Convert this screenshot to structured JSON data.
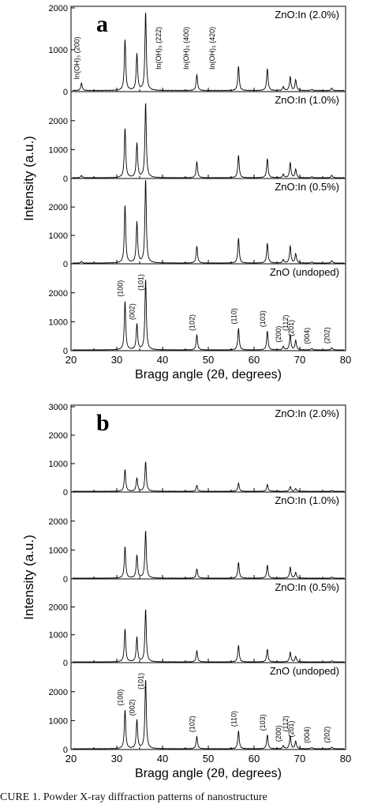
{
  "caption": "CURE 1. Powder X-ray diffraction patterns of nanostructure",
  "chart_data": [
    {
      "type": "line",
      "panel_label": "a",
      "xlabel": "Bragg angle (2θ, degrees)",
      "ylabel": "Intensity (a.u.)",
      "xlim": [
        20,
        80
      ],
      "xticks": [
        "20",
        "30",
        "40",
        "50",
        "60",
        "70",
        "80"
      ],
      "grid": false,
      "series": [
        {
          "name": "ZnO:In (2.0%)",
          "ylim": [
            0,
            2000
          ],
          "yticks": [
            "0",
            "1000",
            "2000"
          ],
          "peaks": [
            [
              22.3,
              180
            ],
            [
              31.8,
              1230
            ],
            [
              34.4,
              880
            ],
            [
              36.3,
              1880
            ],
            [
              47.5,
              380
            ],
            [
              56.6,
              580
            ],
            [
              62.9,
              520
            ],
            [
              66.4,
              90
            ],
            [
              67.9,
              330
            ],
            [
              69.1,
              260
            ],
            [
              72.6,
              30
            ],
            [
              77.0,
              60
            ]
          ],
          "annotations": [
            {
              "text": "In(OH)₃ (200)",
              "x": 22.3
            },
            {
              "text": "In(OH)₃ (222)",
              "x": 40.2
            },
            {
              "text": "In(OH)₃ (400)",
              "x": 46.2
            },
            {
              "text": "In(OH)₃ (420)",
              "x": 51.9
            }
          ]
        },
        {
          "name": "ZnO:In (1.0%)",
          "ylim": [
            0,
            2950
          ],
          "yticks": [
            "0",
            "1000",
            "2000"
          ],
          "peaks": [
            [
              22.3,
              80
            ],
            [
              31.8,
              1720
            ],
            [
              34.4,
              1200
            ],
            [
              36.3,
              2600
            ],
            [
              47.5,
              550
            ],
            [
              56.6,
              780
            ],
            [
              62.9,
              660
            ],
            [
              66.4,
              120
            ],
            [
              67.9,
              520
            ],
            [
              69.1,
              300
            ],
            [
              72.6,
              40
            ],
            [
              77.0,
              90
            ]
          ],
          "annotations": []
        },
        {
          "name": "ZnO:In (0.5%)",
          "ylim": [
            0,
            2950
          ],
          "yticks": [
            "0",
            "1000",
            "2000"
          ],
          "peaks": [
            [
              22.3,
              60
            ],
            [
              31.8,
              2050
            ],
            [
              34.4,
              1450
            ],
            [
              36.3,
              3000
            ],
            [
              47.5,
              600
            ],
            [
              56.6,
              880
            ],
            [
              62.9,
              700
            ],
            [
              66.4,
              120
            ],
            [
              67.9,
              600
            ],
            [
              69.1,
              330
            ],
            [
              72.6,
              40
            ],
            [
              77.0,
              90
            ]
          ],
          "annotations": []
        },
        {
          "name": "ZnO (undoped)",
          "ylim": [
            0,
            2950
          ],
          "yticks": [
            "0",
            "1000",
            "2000"
          ],
          "peaks": [
            [
              31.8,
              1700
            ],
            [
              34.4,
              900
            ],
            [
              36.3,
              2450
            ],
            [
              47.5,
              520
            ],
            [
              56.6,
              750
            ],
            [
              62.9,
              650
            ],
            [
              66.4,
              120
            ],
            [
              67.9,
              520
            ],
            [
              69.1,
              330
            ],
            [
              72.6,
              60
            ],
            [
              77.0,
              80
            ]
          ],
          "annotations": [
            {
              "text": "(100)",
              "x": 31.8
            },
            {
              "text": "(002)",
              "x": 34.4
            },
            {
              "text": "(101)",
              "x": 36.3
            },
            {
              "text": "(102)",
              "x": 47.5
            },
            {
              "text": "(110)",
              "x": 56.6
            },
            {
              "text": "(103)",
              "x": 62.9
            },
            {
              "text": "(200)",
              "x": 66.4
            },
            {
              "text": "(112)",
              "x": 67.9
            },
            {
              "text": "(201)",
              "x": 69.1
            },
            {
              "text": "(004)",
              "x": 72.6
            },
            {
              "text": "(202)",
              "x": 77.0
            }
          ]
        }
      ]
    },
    {
      "type": "line",
      "panel_label": "b",
      "xlabel": "Bragg angle (2θ, degrees)",
      "ylabel": "Intensity (a.u.)",
      "xlim": [
        20,
        80
      ],
      "xticks": [
        "20",
        "30",
        "40",
        "50",
        "60",
        "70",
        "80"
      ],
      "grid": false,
      "series": [
        {
          "name": "ZnO:In (2.0%)",
          "ylim": [
            0,
            3000
          ],
          "yticks": [
            "0",
            "1000",
            "2000",
            "3000"
          ],
          "peaks": [
            [
              31.8,
              780
            ],
            [
              34.4,
              480
            ],
            [
              36.3,
              1050
            ],
            [
              47.5,
              210
            ],
            [
              56.6,
              290
            ],
            [
              62.9,
              240
            ],
            [
              67.9,
              170
            ],
            [
              69.1,
              100
            ],
            [
              77.0,
              30
            ]
          ],
          "annotations": []
        },
        {
          "name": "ZnO:In (1.0%)",
          "ylim": [
            0,
            2950
          ],
          "yticks": [
            "0",
            "1000",
            "2000"
          ],
          "peaks": [
            [
              31.8,
              1100
            ],
            [
              34.4,
              800
            ],
            [
              36.3,
              1650
            ],
            [
              47.5,
              320
            ],
            [
              56.6,
              550
            ],
            [
              62.9,
              450
            ],
            [
              67.9,
              380
            ],
            [
              69.1,
              200
            ],
            [
              77.0,
              40
            ]
          ],
          "annotations": []
        },
        {
          "name": "ZnO:In (0.5%)",
          "ylim": [
            0,
            2950
          ],
          "yticks": [
            "0",
            "1000",
            "2000"
          ],
          "peaks": [
            [
              31.8,
              1200
            ],
            [
              34.4,
              900
            ],
            [
              36.3,
              1900
            ],
            [
              47.5,
              400
            ],
            [
              56.6,
              600
            ],
            [
              62.9,
              450
            ],
            [
              67.9,
              350
            ],
            [
              69.1,
              200
            ],
            [
              77.0,
              40
            ]
          ],
          "annotations": []
        },
        {
          "name": "ZnO (undoped)",
          "ylim": [
            0,
            2950
          ],
          "yticks": [
            "0",
            "1000",
            "2000"
          ],
          "peaks": [
            [
              31.8,
              1350
            ],
            [
              34.4,
              1000
            ],
            [
              36.3,
              2400
            ],
            [
              47.5,
              430
            ],
            [
              56.6,
              620
            ],
            [
              62.9,
              480
            ],
            [
              66.4,
              100
            ],
            [
              67.9,
              450
            ],
            [
              69.1,
              260
            ],
            [
              72.6,
              50
            ],
            [
              77.0,
              60
            ]
          ],
          "annotations": [
            {
              "text": "(100)",
              "x": 31.8
            },
            {
              "text": "(002)",
              "x": 34.4
            },
            {
              "text": "(101)",
              "x": 36.3
            },
            {
              "text": "(102)",
              "x": 47.5
            },
            {
              "text": "(110)",
              "x": 56.6
            },
            {
              "text": "(103)",
              "x": 62.9
            },
            {
              "text": "(200)",
              "x": 66.4
            },
            {
              "text": "(112)",
              "x": 67.9
            },
            {
              "text": "(201)",
              "x": 69.1
            },
            {
              "text": "(004)",
              "x": 72.6
            },
            {
              "text": "(202)",
              "x": 77.0
            }
          ]
        }
      ]
    }
  ]
}
